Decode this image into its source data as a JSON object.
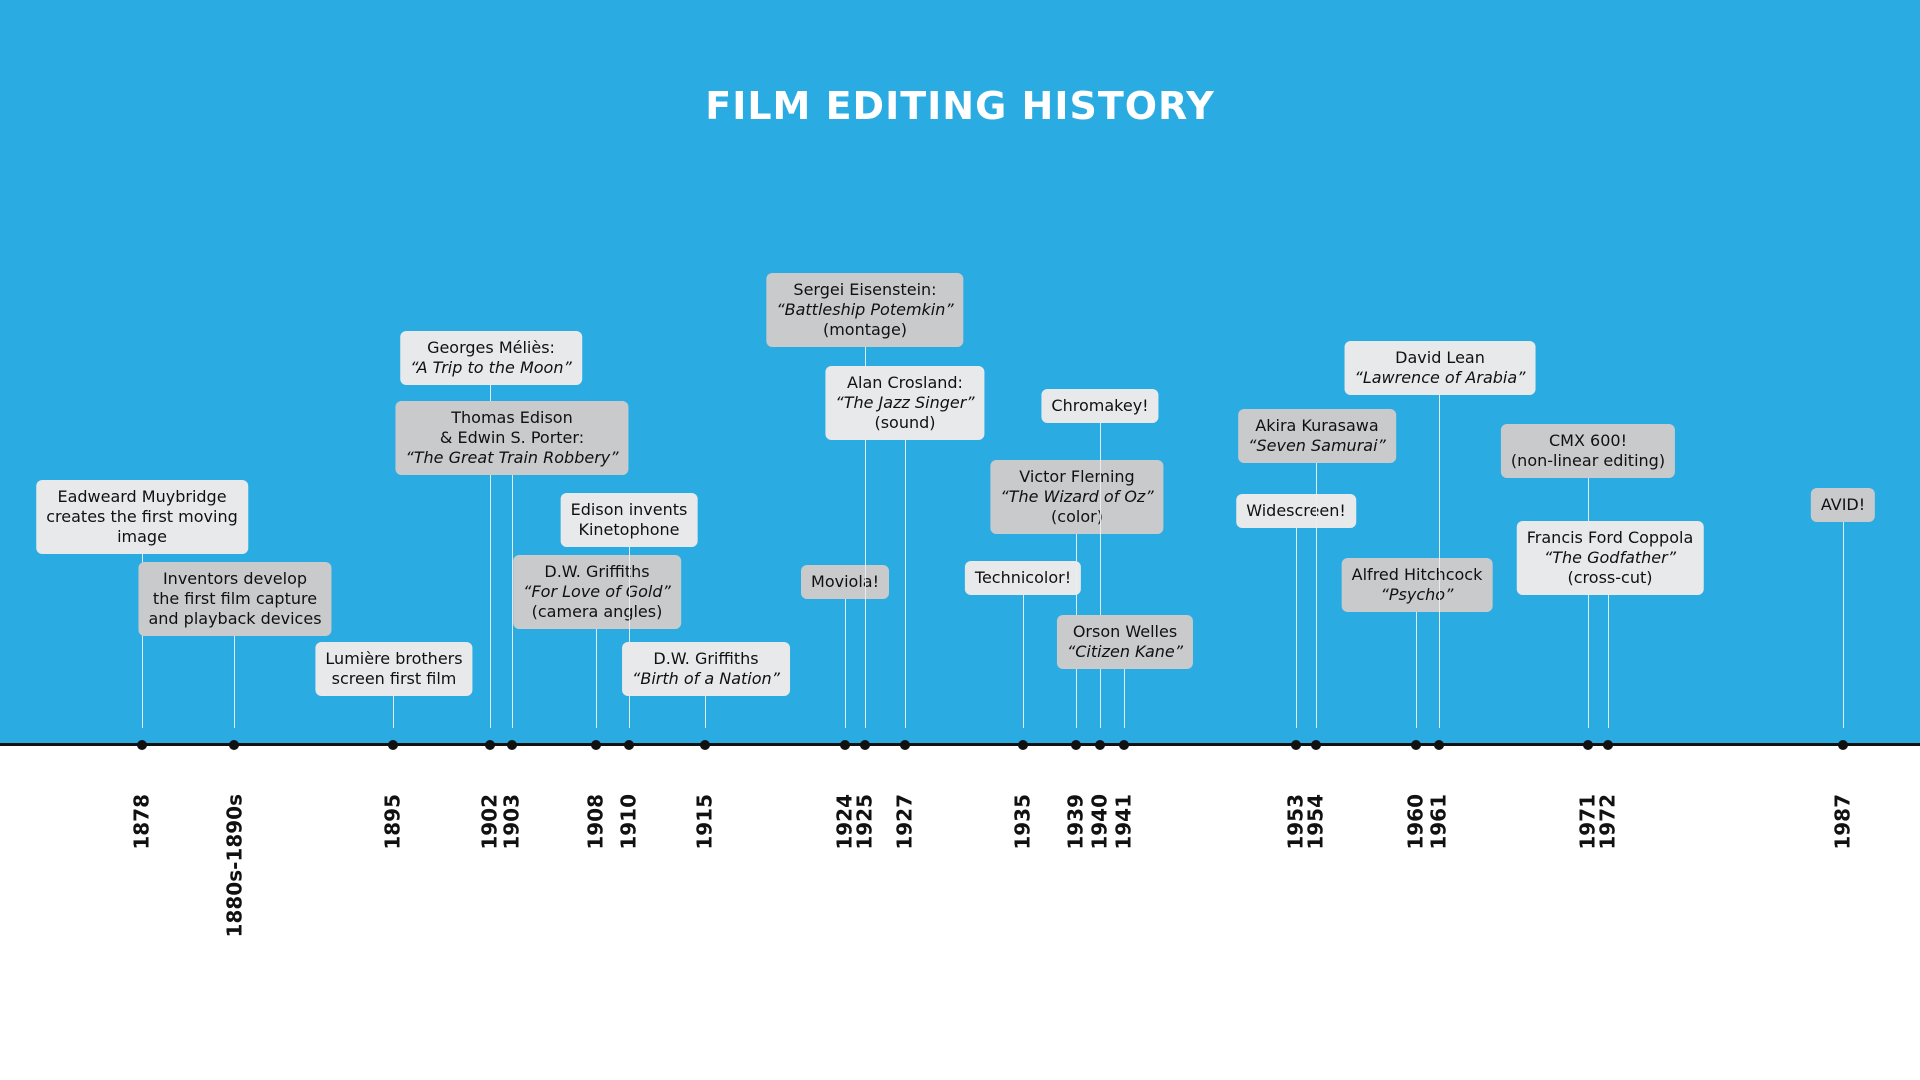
{
  "title": "FILM EDITING HISTORY",
  "colors": {
    "background_band": "#2aace2",
    "axis": "#111111",
    "label_light": "#e8e9ea",
    "label_dark": "#c9cacb"
  },
  "years": [
    "1878",
    "1880s-1890s",
    "1895",
    "1902",
    "1903",
    "1908",
    "1910",
    "1915",
    "1924",
    "1925",
    "1927",
    "1935",
    "1939",
    "1940",
    "1941",
    "1953",
    "1954",
    "1960",
    "1961",
    "1971",
    "1972",
    "1987"
  ],
  "events": [
    {
      "year": "1878",
      "lines": [
        {
          "t": "Eadweard Muybridge"
        },
        {
          "t": "creates the first moving"
        },
        {
          "t": "image"
        }
      ]
    },
    {
      "year": "1880s-1890s",
      "lines": [
        {
          "t": "Inventors develop"
        },
        {
          "t": "the first film capture"
        },
        {
          "t": "and playback devices"
        }
      ]
    },
    {
      "year": "1895",
      "lines": [
        {
          "t": "Lumière brothers"
        },
        {
          "t": "screen first film"
        }
      ]
    },
    {
      "year": "1902",
      "lines": [
        {
          "t": "Georges Méliès:"
        },
        {
          "t": "“A Trip to the Moon”",
          "it": true
        }
      ]
    },
    {
      "year": "1903",
      "lines": [
        {
          "t": "Thomas Edison"
        },
        {
          "t": "& Edwin S. Porter:"
        },
        {
          "t": "“The Great Train Robbery”",
          "it": true
        }
      ]
    },
    {
      "year": "1908",
      "lines": [
        {
          "t": "D.W. Griffiths"
        },
        {
          "t": "“For Love of Gold”",
          "it": true
        },
        {
          "t": "(camera angles)"
        }
      ]
    },
    {
      "year": "1910",
      "lines": [
        {
          "t": "Edison invents"
        },
        {
          "t": "Kinetophone"
        }
      ]
    },
    {
      "year": "1915",
      "lines": [
        {
          "t": "D.W. Griffiths"
        },
        {
          "t": "“Birth of a Nation”",
          "it": true
        }
      ]
    },
    {
      "year": "1924",
      "lines": [
        {
          "t": "Moviola!"
        }
      ]
    },
    {
      "year": "1925",
      "lines": [
        {
          "t": "Sergei Eisenstein:"
        },
        {
          "t": "“Battleship Potemkin”",
          "it": true
        },
        {
          "t": "(montage)"
        }
      ]
    },
    {
      "year": "1927",
      "lines": [
        {
          "t": "Alan Crosland:"
        },
        {
          "t": "“The Jazz Singer”",
          "it": true
        },
        {
          "t": "(sound)"
        }
      ]
    },
    {
      "year": "1935",
      "lines": [
        {
          "t": "Technicolor!"
        }
      ]
    },
    {
      "year": "1939",
      "lines": [
        {
          "t": "Victor Fleming"
        },
        {
          "t": "“The Wizard of Oz”",
          "it": true
        },
        {
          "t": "(color)"
        }
      ]
    },
    {
      "year": "1940",
      "lines": [
        {
          "t": "Chromakey!"
        }
      ]
    },
    {
      "year": "1941",
      "lines": [
        {
          "t": "Orson Welles"
        },
        {
          "t": "“Citizen Kane”",
          "it": true
        }
      ]
    },
    {
      "year": "1953",
      "lines": [
        {
          "t": "Widescreen!"
        }
      ]
    },
    {
      "year": "1954",
      "lines": [
        {
          "t": "Akira Kurasawa"
        },
        {
          "t": "“Seven Samurai”",
          "it": true
        }
      ]
    },
    {
      "year": "1960",
      "lines": [
        {
          "t": "Alfred Hitchcock"
        },
        {
          "t": "“Psycho”",
          "it": true
        }
      ]
    },
    {
      "year": "1961",
      "lines": [
        {
          "t": "David Lean"
        },
        {
          "t": "“Lawrence of Arabia”",
          "it": true
        }
      ]
    },
    {
      "year": "1971",
      "lines": [
        {
          "t": "CMX 600!"
        },
        {
          "t": "(non-linear editing)"
        }
      ]
    },
    {
      "year": "1972",
      "lines": [
        {
          "t": "Francis Ford Coppola"
        },
        {
          "t": "“The Godfather”",
          "it": true
        },
        {
          "t": "(cross-cut)"
        }
      ]
    },
    {
      "year": "1987",
      "lines": [
        {
          "t": "AVID!"
        }
      ]
    }
  ]
}
